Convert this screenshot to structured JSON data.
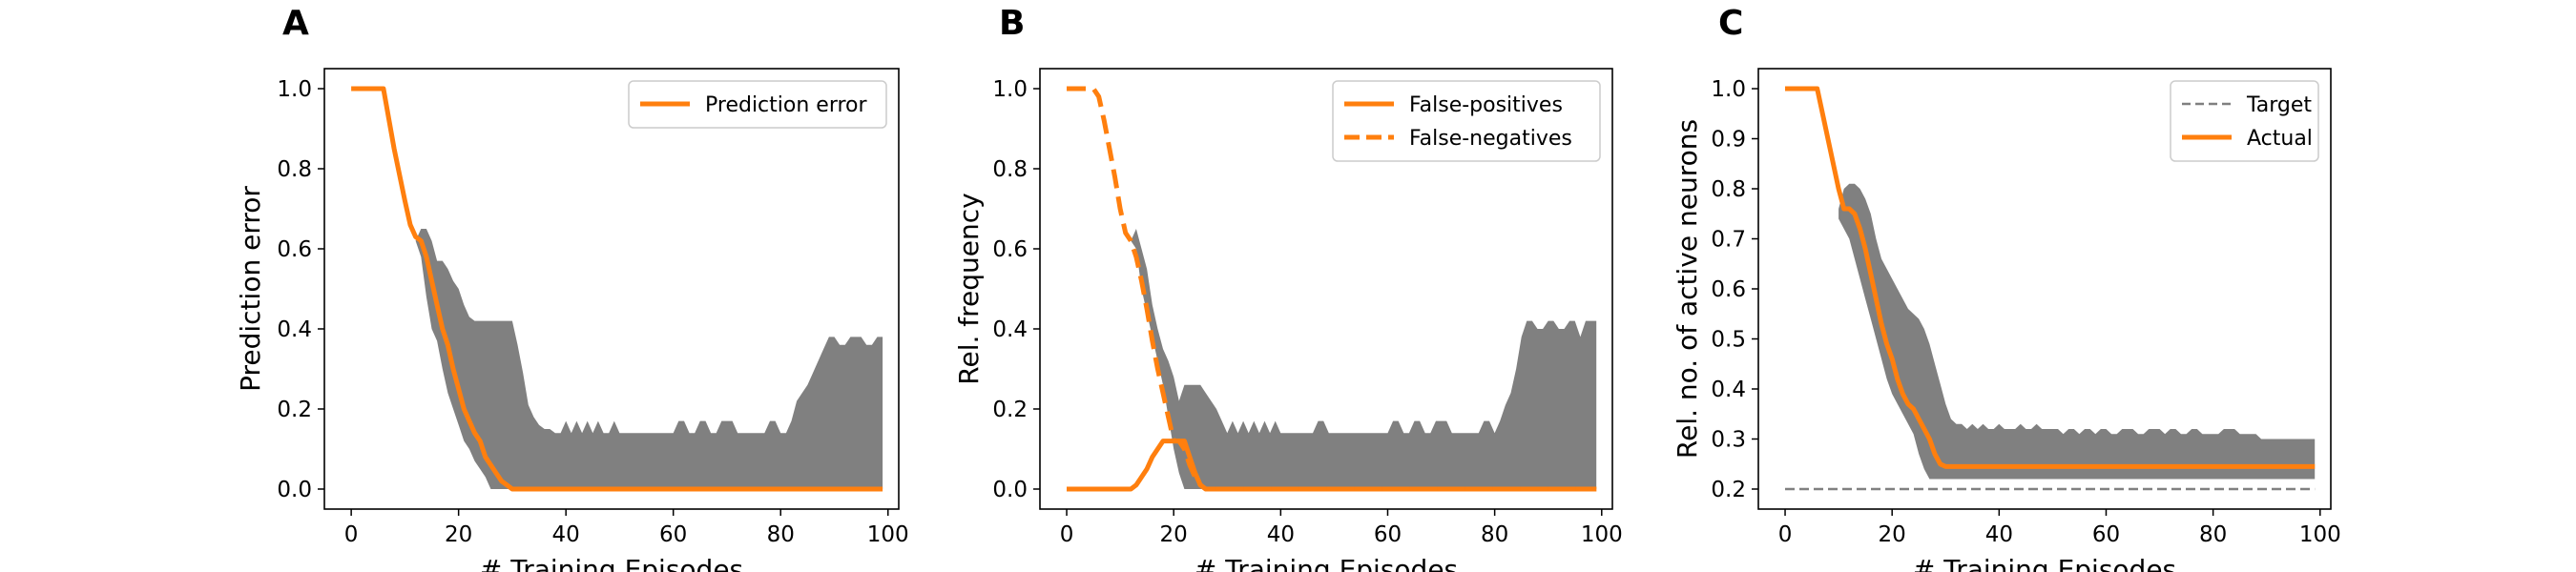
{
  "figure": {
    "panels": [
      "A",
      "B",
      "C"
    ]
  },
  "chart_data": [
    {
      "panel": "A",
      "type": "line",
      "xlabel": "# Training Episodes",
      "ylabel": "Prediction error",
      "xlim": [
        -5,
        102
      ],
      "ylim": [
        -0.05,
        1.05
      ],
      "xticks": [
        0,
        20,
        40,
        60,
        80,
        100
      ],
      "yticks": [
        0.0,
        0.2,
        0.4,
        0.6,
        0.8,
        1.0
      ],
      "ytick_labels": [
        "0.0",
        "0.2",
        "0.4",
        "0.6",
        "0.8",
        "1.0"
      ],
      "legend": "top-right",
      "grid": false,
      "band": {
        "color": "#808080",
        "x": [
          12,
          13,
          14,
          15,
          16,
          17,
          18,
          19,
          20,
          21,
          22,
          23,
          24,
          25,
          26,
          27,
          28,
          29,
          30,
          31,
          32,
          33,
          34,
          35,
          36,
          37,
          38,
          39,
          40,
          41,
          42,
          43,
          44,
          45,
          46,
          47,
          48,
          49,
          50,
          51,
          52,
          53,
          54,
          55,
          56,
          57,
          58,
          59,
          60,
          61,
          62,
          63,
          64,
          65,
          66,
          67,
          68,
          69,
          70,
          71,
          72,
          73,
          74,
          75,
          76,
          77,
          78,
          79,
          80,
          81,
          82,
          83,
          84,
          85,
          86,
          87,
          88,
          89,
          90,
          91,
          92,
          93,
          94,
          95,
          96,
          97,
          98,
          99
        ],
        "lower": [
          0.62,
          0.58,
          0.48,
          0.4,
          0.37,
          0.3,
          0.24,
          0.2,
          0.16,
          0.12,
          0.1,
          0.07,
          0.05,
          0.03,
          0.0,
          0.0,
          0.0,
          0.0,
          0.0,
          0.0,
          0.0,
          0.0,
          0.0,
          0.0,
          0.0,
          0.0,
          0.0,
          0.0,
          0.0,
          0.0,
          0.0,
          0.0,
          0.0,
          0.0,
          0.0,
          0.0,
          0.0,
          0.0,
          0.0,
          0.0,
          0.0,
          0.0,
          0.0,
          0.0,
          0.0,
          0.0,
          0.0,
          0.0,
          0.0,
          0.0,
          0.0,
          0.0,
          0.0,
          0.0,
          0.0,
          0.0,
          0.0,
          0.0,
          0.0,
          0.0,
          0.0,
          0.0,
          0.0,
          0.0,
          0.0,
          0.0,
          0.0,
          0.0,
          0.0,
          0.0,
          0.0,
          0.0,
          0.0,
          0.0,
          0.0,
          0.0,
          0.0,
          0.0,
          0.0,
          0.0,
          0.0,
          0.0,
          0.0,
          0.0,
          0.0,
          0.0,
          0.0,
          0.0
        ],
        "upper": [
          0.62,
          0.65,
          0.65,
          0.62,
          0.57,
          0.57,
          0.55,
          0.52,
          0.5,
          0.46,
          0.43,
          0.42,
          0.42,
          0.42,
          0.42,
          0.42,
          0.42,
          0.42,
          0.42,
          0.36,
          0.29,
          0.21,
          0.18,
          0.16,
          0.15,
          0.15,
          0.14,
          0.14,
          0.17,
          0.14,
          0.17,
          0.14,
          0.17,
          0.14,
          0.17,
          0.14,
          0.14,
          0.17,
          0.14,
          0.14,
          0.14,
          0.14,
          0.14,
          0.14,
          0.14,
          0.14,
          0.14,
          0.14,
          0.14,
          0.17,
          0.17,
          0.14,
          0.14,
          0.17,
          0.17,
          0.14,
          0.14,
          0.17,
          0.17,
          0.17,
          0.14,
          0.14,
          0.14,
          0.14,
          0.14,
          0.14,
          0.17,
          0.17,
          0.14,
          0.14,
          0.17,
          0.22,
          0.24,
          0.26,
          0.29,
          0.32,
          0.35,
          0.38,
          0.38,
          0.36,
          0.36,
          0.38,
          0.38,
          0.38,
          0.36,
          0.36,
          0.38,
          0.38
        ]
      },
      "series": [
        {
          "name": "Prediction error",
          "color": "#ff7f0e",
          "dash": "solid",
          "x": [
            0,
            6,
            8,
            10,
            11,
            12,
            13,
            14,
            15,
            16,
            17,
            18,
            19,
            20,
            21,
            22,
            23,
            24,
            25,
            26,
            27,
            28,
            29,
            30,
            40,
            50,
            60,
            70,
            80,
            90,
            99
          ],
          "y": [
            1.0,
            1.0,
            0.85,
            0.72,
            0.66,
            0.63,
            0.62,
            0.58,
            0.52,
            0.46,
            0.4,
            0.36,
            0.3,
            0.25,
            0.2,
            0.17,
            0.14,
            0.12,
            0.08,
            0.06,
            0.04,
            0.02,
            0.01,
            0.0,
            0.0,
            0.0,
            0.0,
            0.0,
            0.0,
            0.0,
            0.0
          ]
        }
      ]
    },
    {
      "panel": "B",
      "type": "line",
      "xlabel": "# Training Episodes",
      "ylabel": "Rel. frequency",
      "xlim": [
        -5,
        102
      ],
      "ylim": [
        -0.05,
        1.05
      ],
      "xticks": [
        0,
        20,
        40,
        60,
        80,
        100
      ],
      "yticks": [
        0.0,
        0.2,
        0.4,
        0.6,
        0.8,
        1.0
      ],
      "ytick_labels": [
        "0.0",
        "0.2",
        "0.4",
        "0.6",
        "0.8",
        "1.0"
      ],
      "legend": "top-right",
      "grid": false,
      "band": {
        "color": "#808080",
        "x": [
          12,
          13,
          14,
          15,
          16,
          17,
          18,
          19,
          20,
          21,
          22,
          23,
          24,
          25,
          26,
          27,
          28,
          29,
          30,
          31,
          32,
          33,
          34,
          35,
          36,
          37,
          38,
          39,
          40,
          41,
          42,
          43,
          44,
          45,
          46,
          47,
          48,
          49,
          50,
          51,
          52,
          53,
          54,
          55,
          56,
          57,
          58,
          59,
          60,
          61,
          62,
          63,
          64,
          65,
          66,
          67,
          68,
          69,
          70,
          71,
          72,
          73,
          74,
          75,
          76,
          77,
          78,
          79,
          80,
          81,
          82,
          83,
          84,
          85,
          86,
          87,
          88,
          89,
          90,
          91,
          92,
          93,
          94,
          95,
          96,
          97,
          98,
          99
        ],
        "lower": [
          0.62,
          0.6,
          0.5,
          0.44,
          0.38,
          0.32,
          0.26,
          0.18,
          0.1,
          0.04,
          0.0,
          0.0,
          0.0,
          0.0,
          0.0,
          0.0,
          0.0,
          0.0,
          0.0,
          0.0,
          0.0,
          0.0,
          0.0,
          0.0,
          0.0,
          0.0,
          0.0,
          0.0,
          0.0,
          0.0,
          0.0,
          0.0,
          0.0,
          0.0,
          0.0,
          0.0,
          0.0,
          0.0,
          0.0,
          0.0,
          0.0,
          0.0,
          0.0,
          0.0,
          0.0,
          0.0,
          0.0,
          0.0,
          0.0,
          0.0,
          0.0,
          0.0,
          0.0,
          0.0,
          0.0,
          0.0,
          0.0,
          0.0,
          0.0,
          0.0,
          0.0,
          0.0,
          0.0,
          0.0,
          0.0,
          0.0,
          0.0,
          0.0,
          0.0,
          0.0,
          0.0,
          0.0,
          0.0,
          0.0,
          0.0,
          0.0,
          0.0,
          0.0,
          0.0,
          0.0,
          0.0,
          0.0,
          0.0,
          0.0,
          0.0,
          0.0,
          0.0,
          0.0
        ],
        "upper": [
          0.62,
          0.65,
          0.6,
          0.55,
          0.46,
          0.4,
          0.35,
          0.32,
          0.28,
          0.22,
          0.26,
          0.26,
          0.26,
          0.26,
          0.24,
          0.22,
          0.2,
          0.17,
          0.14,
          0.17,
          0.14,
          0.17,
          0.14,
          0.17,
          0.14,
          0.17,
          0.14,
          0.17,
          0.14,
          0.14,
          0.14,
          0.14,
          0.14,
          0.14,
          0.14,
          0.17,
          0.17,
          0.14,
          0.14,
          0.14,
          0.14,
          0.14,
          0.14,
          0.14,
          0.14,
          0.14,
          0.14,
          0.14,
          0.14,
          0.17,
          0.17,
          0.14,
          0.14,
          0.17,
          0.17,
          0.14,
          0.14,
          0.17,
          0.17,
          0.17,
          0.14,
          0.14,
          0.14,
          0.14,
          0.14,
          0.14,
          0.17,
          0.17,
          0.14,
          0.17,
          0.21,
          0.24,
          0.3,
          0.38,
          0.42,
          0.42,
          0.4,
          0.4,
          0.42,
          0.42,
          0.4,
          0.4,
          0.42,
          0.42,
          0.38,
          0.42,
          0.42,
          0.42
        ]
      },
      "series": [
        {
          "name": "False-positives",
          "color": "#ff7f0e",
          "dash": "solid",
          "x": [
            0,
            10,
            11,
            12,
            13,
            14,
            15,
            16,
            17,
            18,
            19,
            20,
            21,
            22,
            23,
            24,
            25,
            26,
            40,
            60,
            80,
            99
          ],
          "y": [
            0.0,
            0.0,
            0.0,
            0.0,
            0.01,
            0.03,
            0.05,
            0.08,
            0.1,
            0.12,
            0.12,
            0.12,
            0.12,
            0.12,
            0.08,
            0.04,
            0.01,
            0.0,
            0.0,
            0.0,
            0.0,
            0.0
          ]
        },
        {
          "name": "False-negatives",
          "color": "#ff7f0e",
          "dash": "dashed",
          "x": [
            0,
            5,
            6,
            7,
            8,
            9,
            10,
            11,
            12,
            13,
            14,
            15,
            16,
            17,
            18,
            19,
            20,
            21,
            22,
            23,
            24,
            25,
            26,
            40,
            60,
            80,
            99
          ],
          "y": [
            1.0,
            1.0,
            0.98,
            0.92,
            0.85,
            0.78,
            0.7,
            0.64,
            0.62,
            0.58,
            0.52,
            0.45,
            0.37,
            0.3,
            0.24,
            0.18,
            0.12,
            0.12,
            0.1,
            0.06,
            0.03,
            0.01,
            0.0,
            0.0,
            0.0,
            0.0,
            0.0
          ]
        }
      ]
    },
    {
      "panel": "C",
      "type": "line",
      "xlabel": "# Training Episodes",
      "ylabel": "Rel. no. of active neurons",
      "xlim": [
        -5,
        102
      ],
      "ylim": [
        0.16,
        1.04
      ],
      "xticks": [
        0,
        20,
        40,
        60,
        80,
        100
      ],
      "yticks": [
        0.2,
        0.3,
        0.4,
        0.5,
        0.6,
        0.7,
        0.8,
        0.9,
        1.0
      ],
      "ytick_labels": [
        "0.2",
        "0.3",
        "0.4",
        "0.5",
        "0.6",
        "0.7",
        "0.8",
        "0.9",
        "1.0"
      ],
      "legend": "top-right",
      "grid": false,
      "band": {
        "color": "#808080",
        "x": [
          10,
          11,
          12,
          13,
          14,
          15,
          16,
          17,
          18,
          19,
          20,
          21,
          22,
          23,
          24,
          25,
          26,
          27,
          28,
          29,
          30,
          31,
          32,
          33,
          34,
          35,
          36,
          37,
          38,
          39,
          40,
          41,
          42,
          43,
          44,
          45,
          46,
          47,
          48,
          49,
          50,
          51,
          52,
          53,
          54,
          55,
          56,
          57,
          58,
          59,
          60,
          61,
          62,
          63,
          64,
          65,
          66,
          67,
          68,
          69,
          70,
          71,
          72,
          73,
          74,
          75,
          76,
          77,
          78,
          79,
          80,
          81,
          82,
          83,
          84,
          85,
          86,
          87,
          88,
          89,
          90,
          91,
          92,
          93,
          94,
          95,
          96,
          97,
          98,
          99
        ],
        "lower": [
          0.74,
          0.72,
          0.7,
          0.66,
          0.62,
          0.58,
          0.54,
          0.5,
          0.46,
          0.42,
          0.39,
          0.37,
          0.35,
          0.33,
          0.31,
          0.27,
          0.24,
          0.22,
          0.22,
          0.22,
          0.22,
          0.22,
          0.22,
          0.22,
          0.22,
          0.22,
          0.22,
          0.22,
          0.22,
          0.22,
          0.22,
          0.22,
          0.22,
          0.22,
          0.22,
          0.22,
          0.22,
          0.22,
          0.22,
          0.22,
          0.22,
          0.22,
          0.22,
          0.22,
          0.22,
          0.22,
          0.22,
          0.22,
          0.22,
          0.22,
          0.22,
          0.22,
          0.22,
          0.22,
          0.22,
          0.22,
          0.22,
          0.22,
          0.22,
          0.22,
          0.22,
          0.22,
          0.22,
          0.22,
          0.22,
          0.22,
          0.22,
          0.22,
          0.22,
          0.22,
          0.22,
          0.22,
          0.22,
          0.22,
          0.22,
          0.22,
          0.22,
          0.22,
          0.22,
          0.22,
          0.22,
          0.22,
          0.22,
          0.22,
          0.22,
          0.22,
          0.22,
          0.22,
          0.22,
          0.22
        ],
        "upper": [
          0.76,
          0.8,
          0.81,
          0.81,
          0.8,
          0.78,
          0.75,
          0.7,
          0.66,
          0.64,
          0.62,
          0.6,
          0.58,
          0.56,
          0.55,
          0.54,
          0.52,
          0.49,
          0.45,
          0.41,
          0.37,
          0.34,
          0.33,
          0.33,
          0.32,
          0.33,
          0.32,
          0.33,
          0.32,
          0.32,
          0.33,
          0.32,
          0.32,
          0.32,
          0.33,
          0.32,
          0.32,
          0.33,
          0.32,
          0.32,
          0.32,
          0.32,
          0.31,
          0.32,
          0.32,
          0.31,
          0.32,
          0.32,
          0.31,
          0.32,
          0.32,
          0.31,
          0.31,
          0.32,
          0.32,
          0.32,
          0.31,
          0.31,
          0.32,
          0.32,
          0.32,
          0.31,
          0.32,
          0.32,
          0.31,
          0.31,
          0.32,
          0.32,
          0.31,
          0.31,
          0.31,
          0.31,
          0.32,
          0.32,
          0.32,
          0.31,
          0.31,
          0.31,
          0.31,
          0.3,
          0.3,
          0.3,
          0.3,
          0.3,
          0.3,
          0.3,
          0.3,
          0.3,
          0.3,
          0.3
        ]
      },
      "series": [
        {
          "name": "Target",
          "color": "#808080",
          "dash": "dashed",
          "x": [
            0,
            99
          ],
          "y": [
            0.2,
            0.2
          ]
        },
        {
          "name": "Actual",
          "color": "#ff7f0e",
          "dash": "solid",
          "x": [
            0,
            6,
            8,
            10,
            11,
            12,
            13,
            14,
            15,
            16,
            17,
            18,
            19,
            20,
            21,
            22,
            23,
            24,
            25,
            26,
            27,
            28,
            29,
            30,
            31,
            32,
            35,
            40,
            50,
            60,
            70,
            80,
            90,
            99
          ],
          "y": [
            1.0,
            1.0,
            0.9,
            0.8,
            0.76,
            0.76,
            0.75,
            0.72,
            0.68,
            0.63,
            0.58,
            0.53,
            0.49,
            0.46,
            0.42,
            0.39,
            0.37,
            0.36,
            0.34,
            0.32,
            0.3,
            0.27,
            0.25,
            0.245,
            0.245,
            0.245,
            0.245,
            0.245,
            0.245,
            0.245,
            0.245,
            0.245,
            0.245,
            0.245
          ]
        }
      ]
    }
  ]
}
